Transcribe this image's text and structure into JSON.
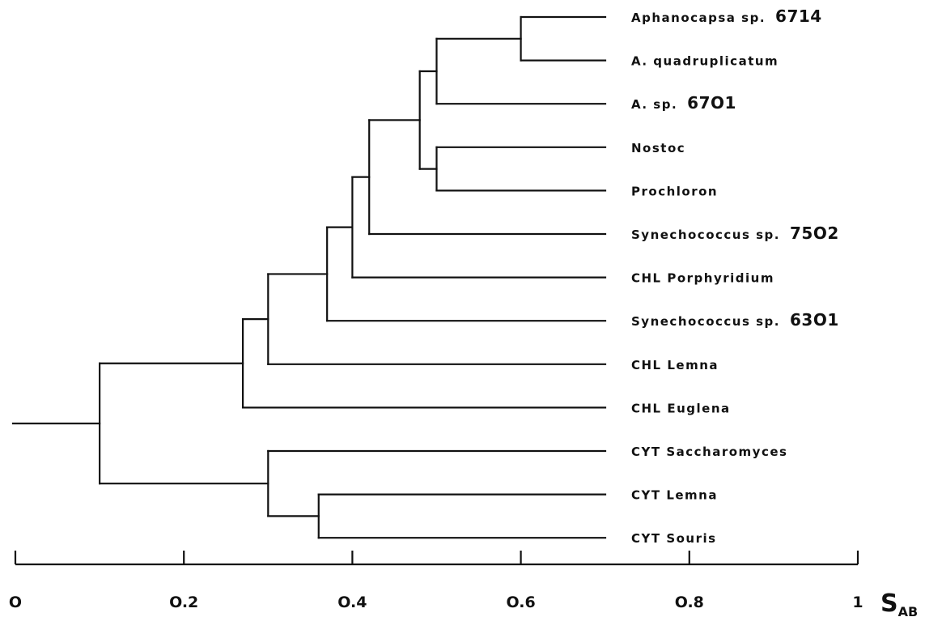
{
  "chart_data": {
    "type": "dendrogram",
    "axis": {
      "label_main": "S",
      "label_sub": "AB",
      "range": [
        0,
        1
      ],
      "ticks": [
        0,
        0.2,
        0.4,
        0.6,
        0.8,
        1
      ],
      "tick_labels": [
        "O",
        "O.2",
        "O.4",
        "O.6",
        "O.8",
        "1"
      ]
    },
    "leaves": [
      {
        "label": "Aphanocapsa sp.",
        "number": "6714"
      },
      {
        "label": "A. quadruplicatum",
        "number": ""
      },
      {
        "label": "A. sp.",
        "number": "67O1"
      },
      {
        "label": "Nostoc",
        "number": ""
      },
      {
        "label": "Prochloron",
        "number": ""
      },
      {
        "label": "Synechococcus sp.",
        "number": "75O2"
      },
      {
        "label": "CHL Porphyridium",
        "number": ""
      },
      {
        "label": "Synechococcus sp.",
        "number": "63O1"
      },
      {
        "label": "CHL Lemna",
        "number": ""
      },
      {
        "label": "CHL Euglena",
        "number": ""
      },
      {
        "label": "CYT Saccharomyces",
        "number": ""
      },
      {
        "label": "CYT Lemna",
        "number": ""
      },
      {
        "label": "CYT Souris",
        "number": ""
      }
    ],
    "merges": [
      {
        "children": [
          "L0",
          "L1"
        ],
        "similarity": 0.6
      },
      {
        "children": [
          "L3",
          "L4"
        ],
        "similarity": 0.5
      },
      {
        "children": [
          "N0",
          "L2"
        ],
        "similarity": 0.5
      },
      {
        "children": [
          "N2",
          "N1"
        ],
        "similarity": 0.48
      },
      {
        "children": [
          "N3",
          "L5"
        ],
        "similarity": 0.42
      },
      {
        "children": [
          "N4",
          "L6"
        ],
        "similarity": 0.4
      },
      {
        "children": [
          "N5",
          "L7"
        ],
        "similarity": 0.37
      },
      {
        "children": [
          "N6",
          "L8"
        ],
        "similarity": 0.3
      },
      {
        "children": [
          "N7",
          "L9"
        ],
        "similarity": 0.27
      },
      {
        "children": [
          "L11",
          "L12"
        ],
        "similarity": 0.36
      },
      {
        "children": [
          "L10",
          "N9"
        ],
        "similarity": 0.3
      },
      {
        "children": [
          "N8",
          "N10"
        ],
        "similarity": 0.1
      }
    ],
    "root_similarity": 0.0
  }
}
